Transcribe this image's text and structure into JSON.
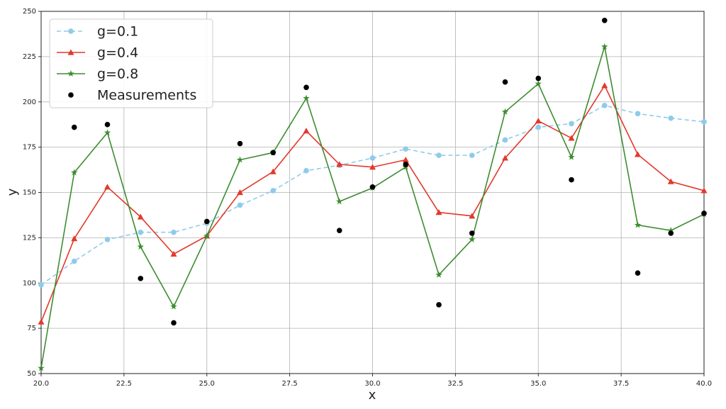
{
  "chart_data": {
    "type": "line",
    "xlabel": "x",
    "ylabel": "y",
    "x": [
      20,
      21,
      22,
      23,
      24,
      25,
      26,
      27,
      28,
      29,
      30,
      31,
      32,
      33,
      34,
      35,
      36,
      37,
      38,
      39,
      40
    ],
    "xlim": [
      20,
      40
    ],
    "xticks": [
      {
        "value": 20,
        "label": "20.0"
      },
      {
        "value": 22.5,
        "label": "22.5"
      },
      {
        "value": 25,
        "label": "25.0"
      },
      {
        "value": 27.5,
        "label": "27.5"
      },
      {
        "value": 30,
        "label": "30.0"
      },
      {
        "value": 32.5,
        "label": "32.5"
      },
      {
        "value": 35,
        "label": "35.0"
      },
      {
        "value": 37.5,
        "label": "37.5"
      },
      {
        "value": 40,
        "label": "40.0"
      }
    ],
    "ylim": [
      50,
      250
    ],
    "yticks": [
      50,
      75,
      100,
      125,
      150,
      175,
      200,
      225,
      250
    ],
    "grid": true,
    "legend": "upper-left",
    "series": [
      {
        "name": "g=0.1",
        "color": "#8fcbea",
        "marker": "circle",
        "linestyle": "dashed",
        "values": [
          99,
          112,
          124,
          128,
          128,
          133,
          143,
          151,
          162,
          165,
          169,
          174,
          170.5,
          170.5,
          179,
          186,
          188,
          198,
          193.5,
          191,
          189
        ]
      },
      {
        "name": "g=0.4",
        "color": "#e3382c",
        "marker": "triangle",
        "linestyle": "solid",
        "values": [
          78.5,
          124.5,
          153,
          136.5,
          116,
          126,
          150,
          161.5,
          184,
          165.5,
          164,
          168,
          139,
          137,
          169,
          189.5,
          180,
          209,
          171,
          156,
          151
        ]
      },
      {
        "name": "g=0.8",
        "color": "#3c8d2f",
        "marker": "star",
        "linestyle": "solid",
        "values": [
          53,
          161,
          183,
          120,
          87,
          126,
          168,
          172,
          202,
          145,
          152.5,
          164,
          104.5,
          124,
          194.5,
          210,
          169.5,
          230.5,
          132,
          129,
          138
        ]
      },
      {
        "name": "Measurements",
        "color": "#000000",
        "marker": "circle",
        "linestyle": "none",
        "values": [
          null,
          186,
          187.5,
          102.5,
          78,
          134,
          177,
          172,
          208,
          129,
          153,
          165.5,
          88,
          127.5,
          211,
          213,
          157,
          245,
          105.5,
          127.5,
          138.5
        ]
      }
    ]
  }
}
